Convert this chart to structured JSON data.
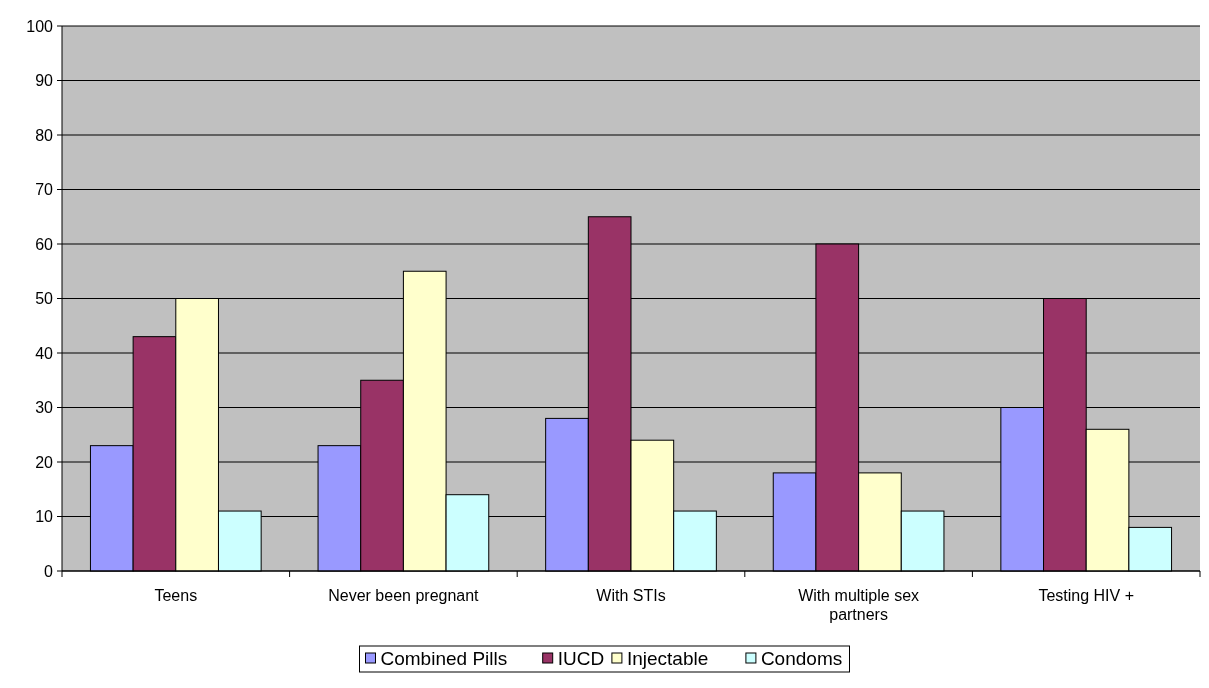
{
  "chart_data": {
    "type": "bar",
    "categories": [
      "Teens",
      "Never been pregnant",
      "With STIs",
      "With multiple sex partners",
      "Testing HIV +"
    ],
    "series": [
      {
        "name": "Combined Pills",
        "color": "#9999ff",
        "values": [
          23,
          23,
          28,
          18,
          30
        ]
      },
      {
        "name": "IUCD",
        "color": "#993366",
        "values": [
          43,
          35,
          65,
          60,
          50
        ]
      },
      {
        "name": "Injectable",
        "color": "#ffffcc",
        "values": [
          50,
          55,
          24,
          18,
          26
        ]
      },
      {
        "name": "Condoms",
        "color": "#ccffff",
        "values": [
          11,
          14,
          11,
          11,
          8
        ]
      }
    ],
    "ylim": [
      0,
      100
    ],
    "yticks": [
      0,
      10,
      20,
      30,
      40,
      50,
      60,
      70,
      80,
      90,
      100
    ],
    "grid": "y",
    "legend": "bottom"
  }
}
